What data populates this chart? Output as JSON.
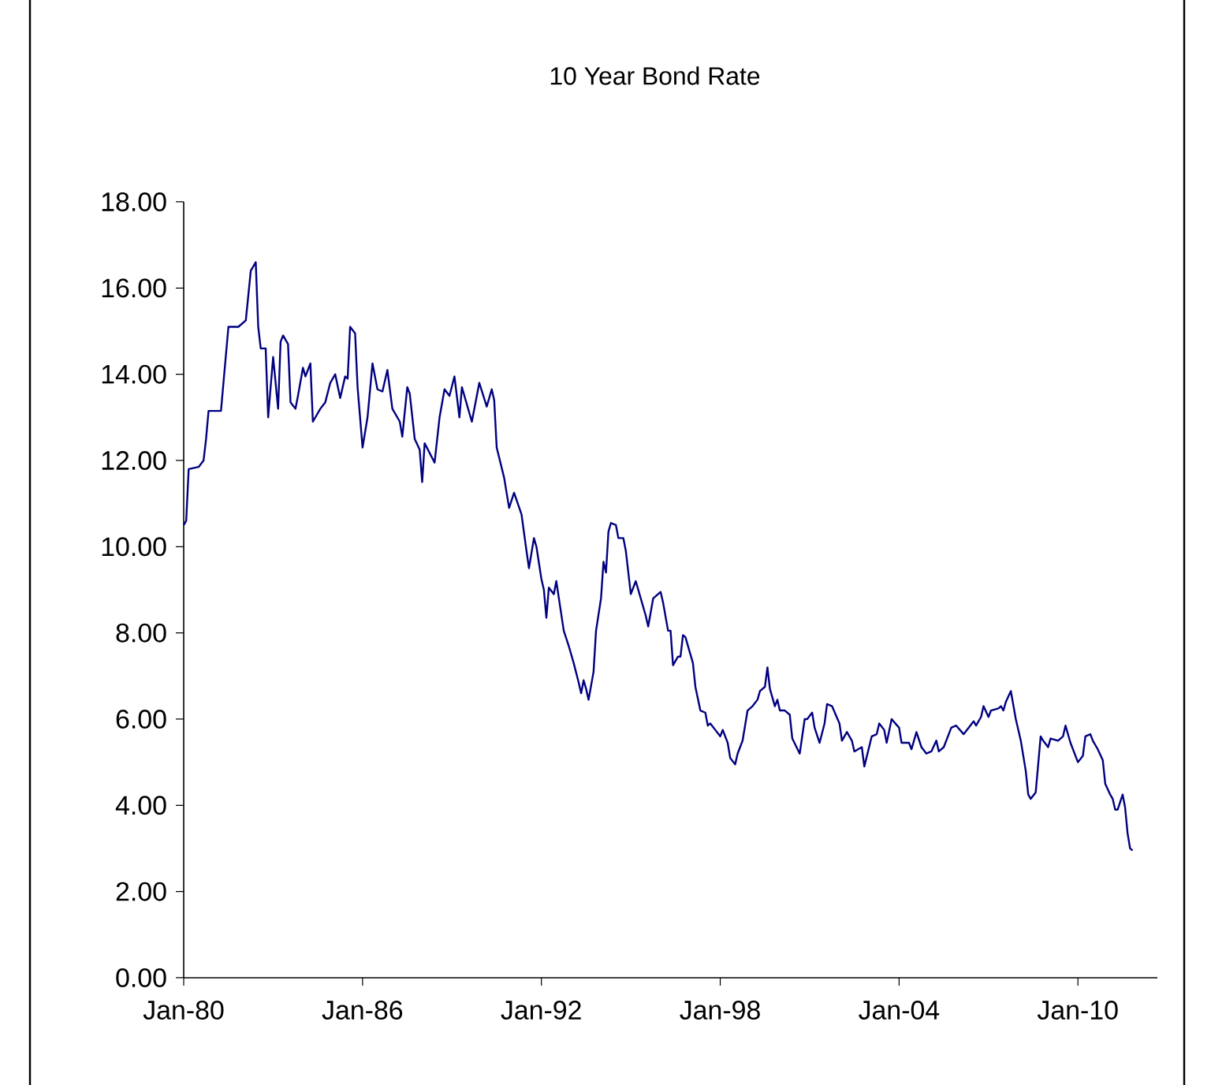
{
  "chart_data": {
    "type": "line",
    "title": "10 Year Bond Rate",
    "x": [
      "1980-01",
      "1980-02",
      "1980-03",
      "1980-07",
      "1980-09",
      "1980-10",
      "1980-11",
      "1981-04",
      "1981-07",
      "1981-11",
      "1982-02",
      "1982-04",
      "1982-06",
      "1982-07",
      "1982-08",
      "1982-10",
      "1982-11",
      "1983-01",
      "1983-03",
      "1983-04",
      "1983-05",
      "1983-07",
      "1983-08",
      "1983-10",
      "1983-11",
      "1984-01",
      "1984-02",
      "1984-04",
      "1984-05",
      "1984-08",
      "1984-10",
      "1984-12",
      "1985-02",
      "1985-04",
      "1985-06",
      "1985-07",
      "1985-08",
      "1985-10",
      "1985-11",
      "1986-01",
      "1986-03",
      "1986-05",
      "1986-07",
      "1986-09",
      "1986-11",
      "1987-01",
      "1987-04",
      "1987-05",
      "1987-07",
      "1987-08",
      "1987-10",
      "1987-12",
      "1988-01",
      "1988-02",
      "1988-06",
      "1988-08",
      "1988-10",
      "1988-12",
      "1989-02",
      "1989-04",
      "1989-05",
      "1989-09",
      "1989-12",
      "1990-03",
      "1990-05",
      "1990-06",
      "1990-07",
      "1990-10",
      "1990-12",
      "1991-02",
      "1991-05",
      "1991-07",
      "1991-08",
      "1991-10",
      "1991-11",
      "1992-01",
      "1992-02",
      "1992-03",
      "1992-04",
      "1992-06",
      "1992-07",
      "1992-10",
      "1992-12",
      "1993-02",
      "1993-04",
      "1993-05",
      "1993-06",
      "1993-07",
      "1993-08",
      "1993-10",
      "1993-11",
      "1994-01",
      "1994-02",
      "1994-03",
      "1994-04",
      "1994-05",
      "1994-07",
      "1994-08",
      "1994-10",
      "1994-11",
      "1995-01",
      "1995-03",
      "1995-05",
      "1995-07",
      "1995-08",
      "1995-10",
      "1996-01",
      "1996-02",
      "1996-04",
      "1996-05",
      "1996-06",
      "1996-08",
      "1996-09",
      "1996-10",
      "1996-11",
      "1997-02",
      "1997-03",
      "1997-05",
      "1997-07",
      "1997-08",
      "1997-09",
      "1997-11",
      "1998-01",
      "1998-02",
      "1998-04",
      "1998-05",
      "1998-07",
      "1998-08",
      "1998-10",
      "1998-12",
      "1999-02",
      "1999-04",
      "1999-05",
      "1999-07",
      "1999-08",
      "1999-09",
      "1999-11",
      "1999-12",
      "2000-01",
      "2000-03",
      "2000-05",
      "2000-06",
      "2000-09",
      "2000-11",
      "2000-12",
      "2001-02",
      "2001-03",
      "2001-05",
      "2001-07",
      "2001-08",
      "2001-10",
      "2002-01",
      "2002-02",
      "2002-04",
      "2002-06",
      "2002-07",
      "2002-10",
      "2002-11",
      "2003-02",
      "2003-04",
      "2003-05",
      "2003-07",
      "2003-08",
      "2003-10",
      "2004-01",
      "2004-02",
      "2004-05",
      "2004-06",
      "2004-08",
      "2004-10",
      "2004-12",
      "2005-02",
      "2005-04",
      "2005-05",
      "2005-07",
      "2005-10",
      "2005-12",
      "2006-03",
      "2006-05",
      "2006-07",
      "2006-08",
      "2006-10",
      "2006-11",
      "2007-01",
      "2007-02",
      "2007-05",
      "2007-06",
      "2007-07",
      "2007-08",
      "2007-10",
      "2007-12",
      "2008-02",
      "2008-04",
      "2008-05",
      "2008-06",
      "2008-08",
      "2008-09",
      "2008-10",
      "2008-11",
      "2009-01",
      "2009-02",
      "2009-05",
      "2009-07",
      "2009-08",
      "2009-10",
      "2010-01",
      "2010-03",
      "2010-04",
      "2010-06",
      "2010-07",
      "2010-09",
      "2010-11",
      "2010-12",
      "2011-02",
      "2011-03",
      "2011-04",
      "2011-05",
      "2011-07",
      "2011-08",
      "2011-09",
      "2011-10",
      "2011-11"
    ],
    "series": [
      {
        "color": "#000080",
        "values": [
          10.5,
          10.6,
          11.8,
          11.85,
          12.0,
          12.5,
          13.15,
          13.15,
          15.1,
          15.1,
          15.25,
          16.4,
          16.6,
          15.1,
          14.6,
          14.6,
          13.0,
          14.4,
          13.2,
          14.75,
          14.9,
          14.7,
          13.35,
          13.2,
          13.5,
          14.15,
          13.95,
          14.25,
          12.9,
          13.2,
          13.35,
          13.8,
          14.0,
          13.45,
          13.95,
          13.9,
          15.1,
          14.95,
          13.7,
          12.3,
          13.0,
          14.25,
          13.65,
          13.6,
          14.1,
          13.2,
          12.9,
          12.55,
          13.7,
          13.55,
          12.5,
          12.25,
          11.5,
          12.4,
          11.95,
          13.0,
          13.65,
          13.5,
          13.95,
          13.0,
          13.7,
          12.9,
          13.8,
          13.25,
          13.65,
          13.4,
          12.3,
          11.6,
          10.9,
          11.25,
          10.75,
          9.9,
          9.5,
          10.2,
          10.0,
          9.25,
          9.0,
          8.35,
          9.05,
          8.9,
          9.2,
          8.05,
          7.7,
          7.3,
          6.85,
          6.6,
          6.9,
          6.7,
          6.45,
          7.1,
          8.05,
          8.8,
          9.65,
          9.4,
          10.35,
          10.55,
          10.5,
          10.2,
          10.2,
          9.9,
          8.9,
          9.2,
          8.8,
          8.4,
          8.15,
          8.8,
          8.95,
          8.7,
          8.05,
          8.05,
          7.25,
          7.45,
          7.45,
          7.95,
          7.9,
          7.3,
          6.75,
          6.2,
          6.15,
          5.85,
          5.9,
          5.75,
          5.6,
          5.75,
          5.45,
          5.1,
          4.95,
          5.2,
          5.5,
          6.2,
          6.3,
          6.45,
          6.65,
          6.75,
          7.2,
          6.7,
          6.3,
          6.45,
          6.2,
          6.2,
          6.1,
          5.55,
          5.2,
          6.0,
          6.0,
          6.15,
          5.8,
          5.45,
          5.9,
          6.35,
          6.3,
          5.9,
          5.5,
          5.7,
          5.5,
          5.25,
          5.35,
          4.9,
          5.6,
          5.65,
          5.9,
          5.75,
          5.45,
          6.0,
          5.8,
          5.45,
          5.45,
          5.3,
          5.7,
          5.35,
          5.2,
          5.25,
          5.5,
          5.25,
          5.35,
          5.8,
          5.85,
          5.65,
          5.8,
          5.95,
          5.85,
          6.05,
          6.3,
          6.05,
          6.2,
          6.25,
          6.3,
          6.2,
          6.4,
          6.65,
          6.0,
          5.5,
          4.8,
          4.25,
          4.15,
          4.3,
          4.95,
          5.6,
          5.5,
          5.35,
          5.55,
          5.5,
          5.6,
          5.85,
          5.45,
          5.0,
          5.15,
          5.6,
          5.65,
          5.5,
          5.3,
          5.05,
          4.5,
          4.25,
          4.15,
          3.9,
          3.9,
          4.25,
          3.95,
          3.35,
          3.0,
          2.95
        ]
      }
    ],
    "xlim": [
      "1980-01",
      "2012-09"
    ],
    "xticks": [
      {
        "value": "1980-01",
        "label": "Jan-80"
      },
      {
        "value": "1986-01",
        "label": "Jan-86"
      },
      {
        "value": "1992-01",
        "label": "Jan-92"
      },
      {
        "value": "1998-01",
        "label": "Jan-98"
      },
      {
        "value": "2004-01",
        "label": "Jan-04"
      },
      {
        "value": "2010-01",
        "label": "Jan-10"
      }
    ],
    "ylim": [
      0,
      18
    ],
    "yticks": [
      {
        "value": 0,
        "label": "0.00"
      },
      {
        "value": 2,
        "label": "2.00"
      },
      {
        "value": 4,
        "label": "4.00"
      },
      {
        "value": 6,
        "label": "6.00"
      },
      {
        "value": 8,
        "label": "8.00"
      },
      {
        "value": 10,
        "label": "10.00"
      },
      {
        "value": 12,
        "label": "12.00"
      },
      {
        "value": 14,
        "label": "14.00"
      },
      {
        "value": 16,
        "label": "16.00"
      },
      {
        "value": 18,
        "label": "18.00"
      }
    ],
    "grid": false,
    "legend": false,
    "marker": "none",
    "line_style": "solid"
  }
}
